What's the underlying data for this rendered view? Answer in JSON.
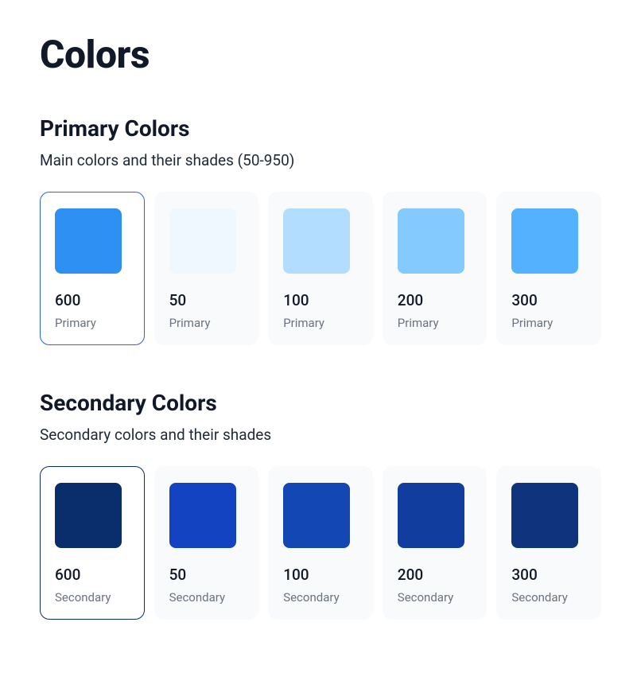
{
  "page_title": "Colors",
  "typography": {
    "page_title_fontsize": 48,
    "section_title_fontsize": 28,
    "section_desc_fontsize": 19,
    "shade_fontsize": 19,
    "family_fontsize": 15
  },
  "colors": {
    "page_bg": "#ffffff",
    "card_bg": "#f9fafb",
    "card_selected_bg": "#ffffff",
    "text_primary": "#111827",
    "text_muted": "#6b7280"
  },
  "layout": {
    "card_radius": 12,
    "chip_radius": 8,
    "chip_size": 84
  },
  "sections": [
    {
      "id": "primary",
      "title": "Primary Colors",
      "description": "Main colors and their shades (50-950)",
      "selected_border_color": "#2563eb",
      "family_label": "Primary",
      "swatches": [
        {
          "shade": "600",
          "color": "#2e90f2",
          "selected": true
        },
        {
          "shade": "50",
          "color": "#eff8ff",
          "selected": false
        },
        {
          "shade": "100",
          "color": "#b2ddff",
          "selected": false
        },
        {
          "shade": "200",
          "color": "#84caff",
          "selected": false
        },
        {
          "shade": "300",
          "color": "#53b1fd",
          "selected": false
        }
      ]
    },
    {
      "id": "secondary",
      "title": "Secondary Colors",
      "description": "Secondary colors and their shades",
      "selected_border_color": "#0a2e6b",
      "family_label": "Secondary",
      "swatches": [
        {
          "shade": "600",
          "color": "#0a2e6b",
          "selected": true
        },
        {
          "shade": "50",
          "color": "#1443c1",
          "selected": false
        },
        {
          "shade": "100",
          "color": "#1347b3",
          "selected": false
        },
        {
          "shade": "200",
          "color": "#113e9e",
          "selected": false
        },
        {
          "shade": "300",
          "color": "#0f337d",
          "selected": false
        }
      ]
    }
  ]
}
